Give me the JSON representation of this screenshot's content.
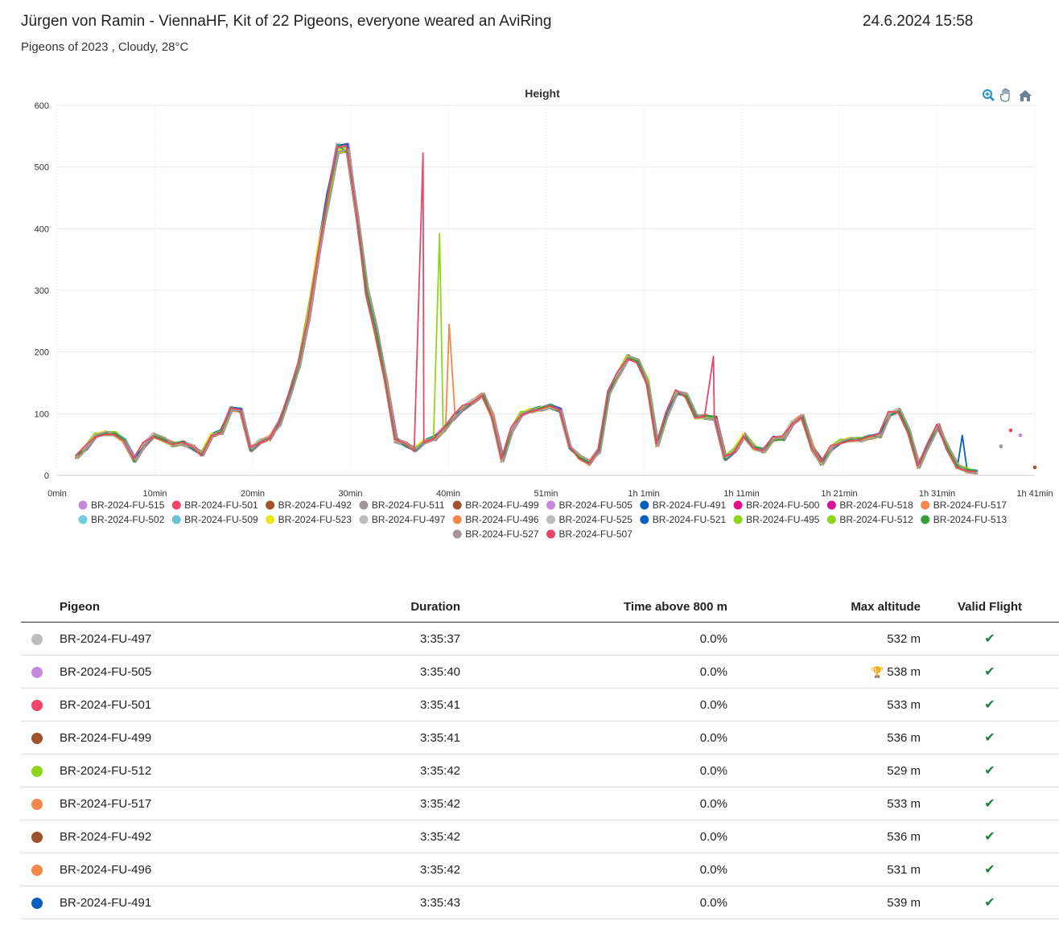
{
  "header": {
    "title": "Jürgen von Ramin - ViennaHF, Kit of 22 Pigeons, everyone weared an AviRing",
    "datetime": "24.6.2024 15:58",
    "subtitle": "Pigeons of 2023 , Cloudy, 28°C"
  },
  "toolbar_icons": [
    "zoom-in-icon",
    "pan-hand-icon",
    "home-icon"
  ],
  "chart_data": {
    "type": "line",
    "title": "Height",
    "xlabel": "",
    "ylabel": "",
    "x_ticks": [
      "0min",
      "10min",
      "20min",
      "30min",
      "40min",
      "51min",
      "1h 1min",
      "1h 11min",
      "1h 21min",
      "1h 31min",
      "1h 41min"
    ],
    "xlim_min": [
      0,
      101
    ],
    "ylim": [
      0,
      600
    ],
    "y_ticks": [
      0,
      100,
      200,
      300,
      400,
      500,
      600
    ],
    "grid": true,
    "legend": "bottom",
    "x_min": [
      2,
      3,
      4,
      5,
      6,
      7,
      8,
      9,
      10,
      11,
      12,
      13,
      14,
      15,
      16,
      17,
      18,
      19,
      20,
      21,
      22,
      23,
      24,
      25,
      26,
      27,
      28,
      29,
      30,
      31,
      32,
      33,
      34,
      35,
      36,
      37,
      38,
      39,
      40,
      41,
      42,
      43,
      44,
      45,
      46,
      47,
      48,
      49,
      50,
      51,
      52,
      53,
      54,
      55,
      56,
      57,
      58,
      59,
      60,
      61,
      62,
      63,
      64,
      65,
      66,
      67,
      68,
      69,
      70,
      71,
      72,
      73,
      74,
      75,
      76,
      77,
      78,
      79,
      80,
      81,
      82,
      83,
      84,
      85,
      86,
      87,
      88,
      89,
      90,
      91,
      92,
      93,
      94,
      95,
      96,
      97
    ],
    "base_heights": [
      30,
      45,
      65,
      68,
      67,
      55,
      25,
      50,
      65,
      58,
      50,
      52,
      45,
      35,
      65,
      70,
      108,
      105,
      42,
      55,
      60,
      85,
      130,
      180,
      260,
      360,
      450,
      530,
      530,
      420,
      300,
      230,
      150,
      57,
      50,
      42,
      55,
      60,
      75,
      95,
      110,
      120,
      130,
      95,
      25,
      75,
      100,
      105,
      108,
      112,
      105,
      45,
      30,
      20,
      40,
      135,
      165,
      192,
      185,
      150,
      50,
      100,
      135,
      130,
      95,
      95,
      92,
      28,
      40,
      65,
      45,
      40,
      60,
      60,
      85,
      95,
      45,
      20,
      45,
      55,
      58,
      58,
      62,
      65,
      100,
      105,
      70,
      15,
      50,
      80,
      45,
      15,
      8,
      5
    ],
    "series": [
      {
        "name": "BR-2024-FU-515",
        "color": "#c38ad9",
        "variant": 0
      },
      {
        "name": "BR-2024-FU-501",
        "color": "#ec4568",
        "variant": 1
      },
      {
        "name": "BR-2024-FU-492",
        "color": "#a0522d",
        "variant": 2
      },
      {
        "name": "BR-2024-FU-511",
        "color": "#a7939b",
        "variant": 3
      },
      {
        "name": "BR-2024-FU-499",
        "color": "#a0522d",
        "variant": 4
      },
      {
        "name": "BR-2024-FU-505",
        "color": "#c38ad9",
        "variant": 5
      },
      {
        "name": "BR-2024-FU-491",
        "color": "#0d5fbf",
        "variant": 6
      },
      {
        "name": "BR-2024-FU-500",
        "color": "#e0138a",
        "variant": 7
      },
      {
        "name": "BR-2024-FU-518",
        "color": "#d6169a",
        "variant": 8
      },
      {
        "name": "BR-2024-FU-517",
        "color": "#f6874a",
        "variant": 9
      },
      {
        "name": "BR-2024-FU-502",
        "color": "#6fcfe0",
        "variant": 10
      },
      {
        "name": "BR-2024-FU-509",
        "color": "#6ac4d4",
        "variant": 11
      },
      {
        "name": "BR-2024-FU-523",
        "color": "#e6e81a",
        "variant": 12
      },
      {
        "name": "BR-2024-FU-497",
        "color": "#bdbdbd",
        "variant": 13
      },
      {
        "name": "BR-2024-FU-496",
        "color": "#f6874a",
        "variant": 14,
        "spike": {
          "x": 40.5,
          "y": 245
        }
      },
      {
        "name": "BR-2024-FU-525",
        "color": "#bdbdbd",
        "variant": 15
      },
      {
        "name": "BR-2024-FU-521",
        "color": "#0d5fbf",
        "variant": 16,
        "tail": {
          "x": 93.5,
          "y": 65
        }
      },
      {
        "name": "BR-2024-FU-495",
        "color": "#8fd61a",
        "variant": 17
      },
      {
        "name": "BR-2024-FU-512",
        "color": "#8fd61a",
        "variant": 18,
        "spike": {
          "x": 39.5,
          "y": 392
        }
      },
      {
        "name": "BR-2024-FU-513",
        "color": "#3a9b3a",
        "variant": 19
      },
      {
        "name": "BR-2024-FU-527",
        "color": "#a7939b",
        "variant": 20
      },
      {
        "name": "BR-2024-FU-507",
        "color": "#ec4568",
        "variant": 21,
        "spike": {
          "x": 37.8,
          "y": 523
        },
        "spike2": {
          "x": 67.8,
          "y": 193
        }
      }
    ],
    "stray_points": [
      {
        "x": 97.5,
        "y": 47,
        "color": "#a7939b"
      },
      {
        "x": 98.5,
        "y": 73,
        "color": "#ec4568"
      },
      {
        "x": 99.5,
        "y": 65,
        "color": "#c38ad9"
      },
      {
        "x": 101,
        "y": 13,
        "color": "#a0522d"
      }
    ]
  },
  "table": {
    "headers": {
      "pigeon": "Pigeon",
      "duration": "Duration",
      "time_above": "Time above 800 m",
      "max_altitude": "Max altitude",
      "valid": "Valid Flight"
    },
    "rows": [
      {
        "color": "#bdbdbd",
        "pigeon": "BR-2024-FU-497",
        "duration": "3:35:37",
        "time_above": "0.0%",
        "max_altitude": "532 m",
        "trophy": false
      },
      {
        "color": "#c38ad9",
        "pigeon": "BR-2024-FU-505",
        "duration": "3:35:40",
        "time_above": "0.0%",
        "max_altitude": "538 m",
        "trophy": true
      },
      {
        "color": "#ec4568",
        "pigeon": "BR-2024-FU-501",
        "duration": "3:35:41",
        "time_above": "0.0%",
        "max_altitude": "533 m",
        "trophy": false
      },
      {
        "color": "#a0522d",
        "pigeon": "BR-2024-FU-499",
        "duration": "3:35:41",
        "time_above": "0.0%",
        "max_altitude": "536 m",
        "trophy": false
      },
      {
        "color": "#8fd61a",
        "pigeon": "BR-2024-FU-512",
        "duration": "3:35:42",
        "time_above": "0.0%",
        "max_altitude": "529 m",
        "trophy": false
      },
      {
        "color": "#f6874a",
        "pigeon": "BR-2024-FU-517",
        "duration": "3:35:42",
        "time_above": "0.0%",
        "max_altitude": "533 m",
        "trophy": false
      },
      {
        "color": "#a0522d",
        "pigeon": "BR-2024-FU-492",
        "duration": "3:35:42",
        "time_above": "0.0%",
        "max_altitude": "536 m",
        "trophy": false
      },
      {
        "color": "#f6874a",
        "pigeon": "BR-2024-FU-496",
        "duration": "3:35:42",
        "time_above": "0.0%",
        "max_altitude": "531 m",
        "trophy": false
      },
      {
        "color": "#0d5fbf",
        "pigeon": "BR-2024-FU-491",
        "duration": "3:35:43",
        "time_above": "0.0%",
        "max_altitude": "539 m",
        "trophy": false
      }
    ]
  }
}
